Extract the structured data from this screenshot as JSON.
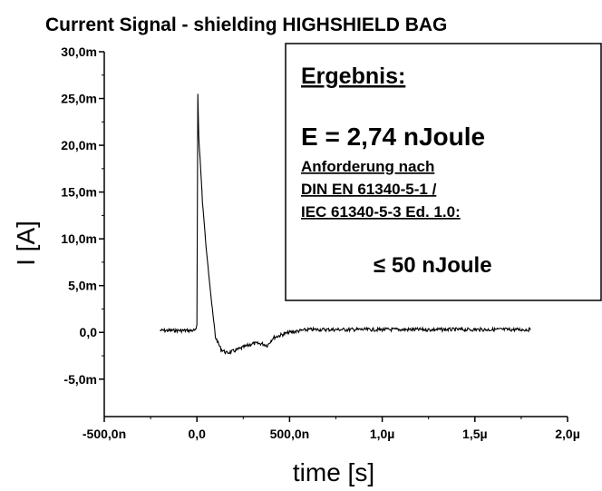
{
  "chart_data": {
    "type": "line",
    "title": "Current Signal - shielding HIGHSHIELD BAG",
    "xlabel": "time [s]",
    "ylabel": "I [A]",
    "xlim": [
      -5e-07,
      2e-06
    ],
    "ylim": [
      -0.009,
      0.03
    ],
    "x_ticks": [
      {
        "value": -5e-07,
        "label": "-500,0n"
      },
      {
        "value": 0,
        "label": "0,0"
      },
      {
        "value": 5e-07,
        "label": "500,0n"
      },
      {
        "value": 1e-06,
        "label": "1,0µ"
      },
      {
        "value": 1.5e-06,
        "label": "1,5µ"
      },
      {
        "value": 2e-06,
        "label": "2,0µ"
      }
    ],
    "y_ticks": [
      {
        "value": 0.03,
        "label": "30,0m"
      },
      {
        "value": 0.025,
        "label": "25,0m"
      },
      {
        "value": 0.02,
        "label": "20,0m"
      },
      {
        "value": 0.015,
        "label": "15,0m"
      },
      {
        "value": 0.01,
        "label": "10,0m"
      },
      {
        "value": 0.005,
        "label": "5,0m"
      },
      {
        "value": 0,
        "label": "0,0"
      },
      {
        "value": -0.005,
        "label": "-5,0m"
      }
    ],
    "grid": false,
    "series": [
      {
        "color": "#000000",
        "x": [
          -2e-07,
          -1e-07,
          -5e-09,
          0,
          5e-09,
          1e-08,
          2e-08,
          3e-08,
          5e-08,
          8e-08,
          1e-07,
          1.3e-07,
          1.6e-07,
          2e-07,
          2.5e-07,
          3e-07,
          3.5e-07,
          3.8e-07,
          4.1e-07,
          4.5e-07,
          5e-07,
          6e-07,
          7e-07,
          8e-07,
          1e-06,
          1.2e-06,
          1.4e-06,
          1.6e-06,
          1.8e-06
        ],
        "y": [
          0.0002,
          0.0002,
          0.0002,
          0.0008,
          0.0255,
          0.021,
          0.0175,
          0.014,
          0.009,
          0.003,
          -0.0005,
          -0.0018,
          -0.0022,
          -0.002,
          -0.0016,
          -0.0012,
          -0.0012,
          -0.0014,
          -0.0006,
          -0.0003,
          0.0,
          0.0003,
          0.0003,
          0.0003,
          0.0003,
          0.0003,
          0.0003,
          0.0003,
          0.0003
        ]
      }
    ]
  },
  "result_box": {
    "heading": "Ergebnis:",
    "result": "E = 2,74 nJoule",
    "requirement_lines": [
      "Anforderung nach",
      "DIN EN 61340-5-1 /",
      "IEC 61340-5-3 Ed. 1.0:"
    ],
    "limit": "≤ 50 nJoule"
  }
}
